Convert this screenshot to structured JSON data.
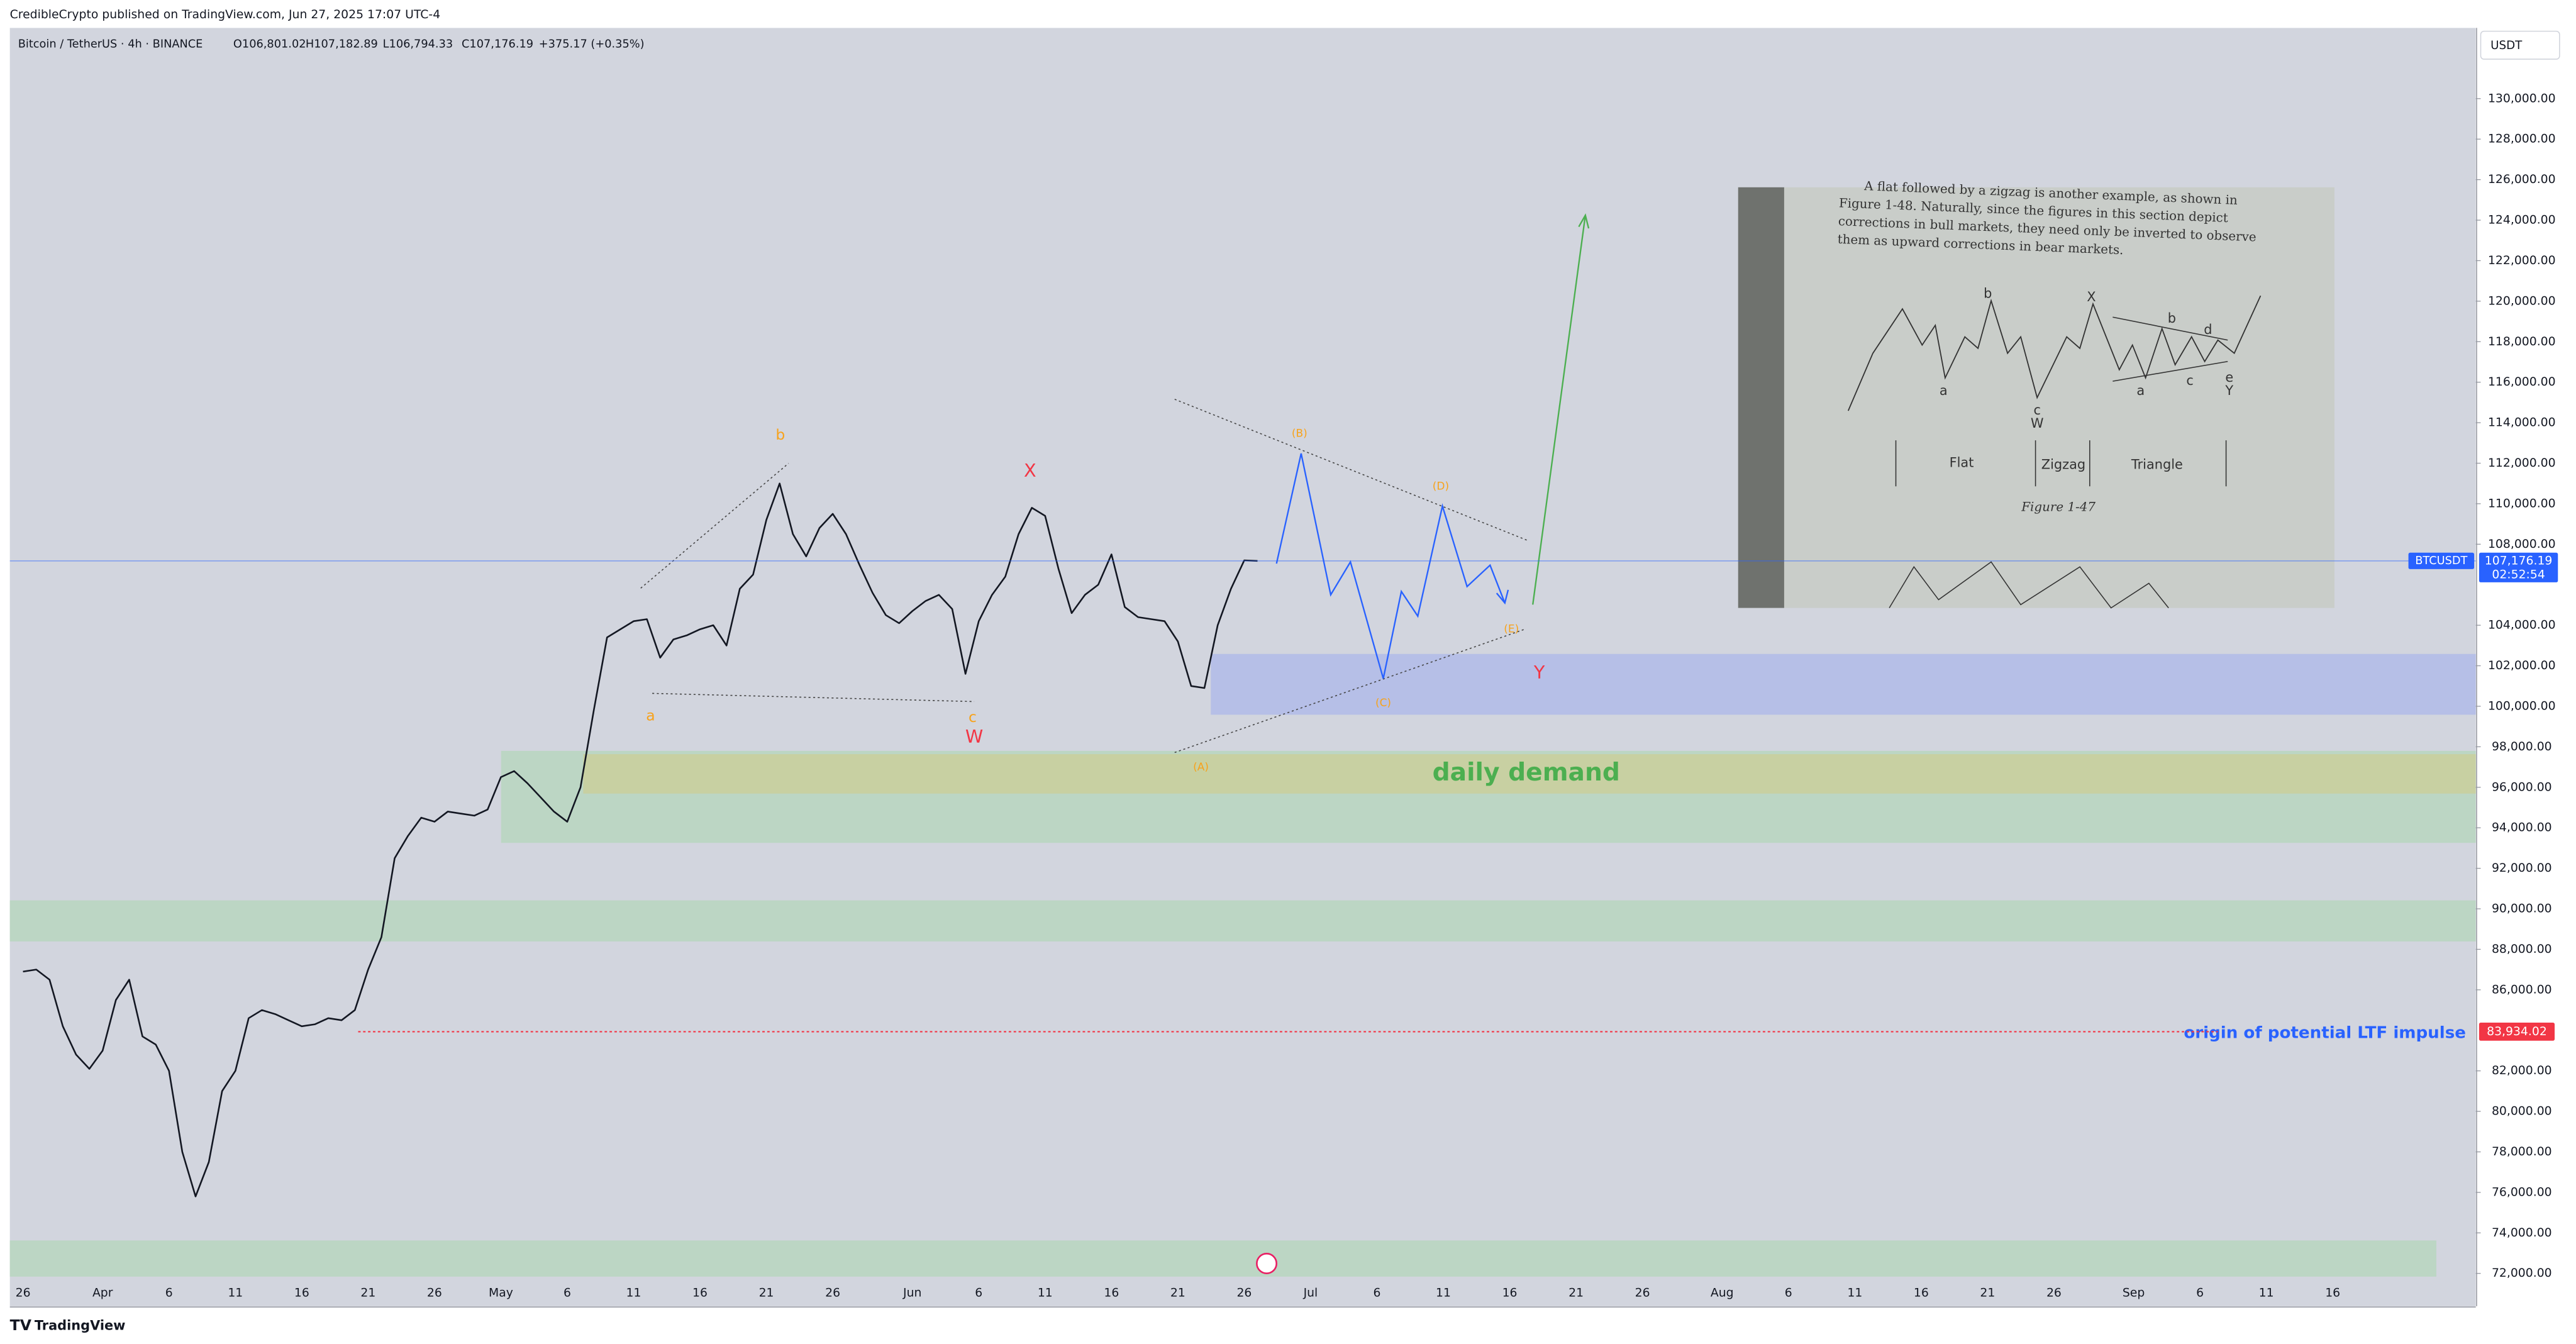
{
  "header": {
    "publisher": "CredibleCrypto published on TradingView.com, Jun 27, 2025 17:07 UTC-4",
    "symbol": "Bitcoin / TetherUS · 4h · BINANCE",
    "ohlc": [
      "O106,801.02",
      "H107,182.89",
      "L106,794.33",
      "C107,176.19",
      "+375.17 (+0.35%)"
    ],
    "currency": "USDT"
  },
  "footer": "TradingView",
  "chart_data": {
    "type": "line",
    "categories": [
      "26",
      null,
      null,
      null,
      null,
      null,
      "Apr",
      null,
      null,
      null,
      null,
      "6",
      null,
      null,
      null,
      null,
      "11",
      null,
      null,
      null,
      null,
      "16",
      null,
      null,
      null,
      null,
      "21",
      null,
      null,
      null,
      null,
      "26",
      null,
      null,
      null,
      null,
      "May",
      null,
      null,
      null,
      null,
      "6",
      null,
      null,
      null,
      null,
      "11",
      null,
      null,
      null,
      null,
      "16",
      null,
      null,
      null,
      null,
      "21",
      null,
      null,
      null,
      null,
      "26",
      null,
      null,
      null,
      null,
      null,
      "Jun",
      null,
      null,
      null,
      null,
      "6",
      null,
      null,
      null,
      null,
      "11",
      null,
      null,
      null,
      null,
      "16",
      null,
      null,
      null,
      null,
      "21",
      null,
      null,
      null,
      null,
      "26",
      null,
      null,
      null,
      null,
      "Jul",
      null,
      null,
      null,
      null,
      "6",
      null,
      null,
      null,
      null,
      "11",
      null,
      null,
      null,
      null,
      "16",
      null,
      null,
      null,
      null,
      "21",
      null,
      null,
      null,
      null,
      "26",
      null,
      null,
      null,
      null,
      null,
      "Aug",
      null,
      null,
      null,
      null,
      "6",
      null,
      null,
      null,
      null,
      "11",
      null,
      null,
      null,
      null,
      "16",
      null,
      null,
      null,
      null,
      "21",
      null,
      null,
      null,
      null,
      "26",
      null,
      null,
      null,
      null,
      null,
      "Sep",
      null,
      null,
      null,
      null,
      "6",
      null,
      null,
      null,
      null,
      "11",
      null,
      null,
      null,
      null,
      "16"
    ],
    "series": [
      {
        "name": "BTCUSDT",
        "color": "#131722",
        "values": [
          86900,
          87000,
          86500,
          84200,
          82800,
          82100,
          83000,
          85500,
          86500,
          83700,
          83300,
          82000,
          78000,
          75800,
          77500,
          81000,
          82000,
          84600,
          85000,
          84800,
          84500,
          84200,
          84300,
          84600,
          84500,
          85000,
          87000,
          88600,
          92500,
          93600,
          94500,
          94300,
          94800,
          94700,
          94600,
          94900,
          96500,
          96800,
          96200,
          95500,
          94800,
          94300,
          96000,
          99800,
          103400,
          103800,
          104200,
          104300,
          102400,
          103300,
          103500,
          103800,
          104000,
          103000,
          105800,
          106500,
          109200,
          111000,
          108500,
          107400,
          108800,
          109500,
          108500,
          107000,
          105600,
          104500,
          104100,
          104700,
          105200,
          105500,
          104800,
          101600,
          104200,
          105500,
          106400,
          108500,
          109800,
          109400,
          106800,
          104600,
          105500,
          106000,
          107500,
          104900,
          104400,
          104300,
          104200,
          103200,
          101000,
          100900,
          104000,
          105800,
          107200,
          107176.19,
          null,
          null,
          null,
          null,
          null,
          null,
          null,
          null,
          null,
          null,
          null,
          null,
          null,
          null,
          null,
          null,
          null,
          null,
          null,
          null,
          null,
          null,
          null,
          null,
          null,
          null,
          null,
          null,
          null,
          null,
          null,
          null,
          null,
          null,
          null,
          null,
          null,
          null,
          null,
          null,
          null,
          null,
          null,
          null,
          null,
          null,
          null,
          null,
          null,
          null,
          null,
          null,
          null,
          null,
          null,
          null,
          null,
          null,
          null,
          null,
          null,
          null,
          null,
          null,
          null,
          null,
          null,
          null,
          null,
          null,
          null,
          null,
          null,
          null,
          null,
          null,
          null,
          null,
          null,
          null,
          null
        ]
      }
    ],
    "ylim": [
      70380,
      133490
    ],
    "yticks": [
      {
        "value": 72000,
        "label": "72,000.00"
      },
      {
        "value": 74000,
        "label": "74,000.00"
      },
      {
        "value": 76000,
        "label": "76,000.00"
      },
      {
        "value": 78000,
        "label": "78,000.00"
      },
      {
        "value": 80000,
        "label": "80,000.00"
      },
      {
        "value": 82000,
        "label": "82,000.00"
      },
      {
        "value": 86000,
        "label": "86,000.00"
      },
      {
        "value": 88000,
        "label": "88,000.00"
      },
      {
        "value": 90000,
        "label": "90,000.00"
      },
      {
        "value": 92000,
        "label": "92,000.00"
      },
      {
        "value": 94000,
        "label": "94,000.00"
      },
      {
        "value": 96000,
        "label": "96,000.00"
      },
      {
        "value": 98000,
        "label": "98,000.00"
      },
      {
        "value": 100000,
        "label": "100,000.00"
      },
      {
        "value": 102000,
        "label": "102,000.00"
      },
      {
        "value": 104000,
        "label": "104,000.00"
      },
      {
        "value": 108000,
        "label": "108,000.00"
      },
      {
        "value": 110000,
        "label": "110,000.00"
      },
      {
        "value": 112000,
        "label": "112,000.00"
      },
      {
        "value": 114000,
        "label": "114,000.00"
      },
      {
        "value": 116000,
        "label": "116,000.00"
      },
      {
        "value": 118000,
        "label": "118,000.00"
      },
      {
        "value": 120000,
        "label": "120,000.00"
      },
      {
        "value": 122000,
        "label": "122,000.00"
      },
      {
        "value": 124000,
        "label": "124,000.00"
      },
      {
        "value": 126000,
        "label": "126,000.00"
      },
      {
        "value": 128000,
        "label": "128,000.00"
      },
      {
        "value": 130000,
        "label": "130,000.00"
      }
    ],
    "grid": false,
    "price_lines": [
      {
        "value": 107176.19,
        "label": "107,176.19",
        "color": "#2962ff",
        "dashed": false
      },
      {
        "value": 83934.02,
        "label": "83,934.02",
        "color": "#f23645",
        "dashed": true
      }
    ],
    "countdown": "02:52:54",
    "annotations": [
      "b",
      "a",
      "c",
      "W",
      "X",
      "(A)",
      "(B)",
      "(C)",
      "(D)",
      "(E)",
      "Y",
      "daily demand",
      "origin of potential LTF impulse"
    ],
    "inset": {
      "lines": [
        "A flat followed by a zigzag is another example, as shown in",
        "Figure 1-48. Naturally, since the figures in this section depict",
        "corrections in bull markets, they need only be inverted to observe",
        "them as upward corrections in bear markets."
      ],
      "labels": [
        "b",
        "X",
        "a",
        "c",
        "W",
        "b",
        "d",
        "a",
        "c",
        "e",
        "Y",
        "Flat",
        "Zigzag",
        "Triangle",
        "Figure 1-47"
      ]
    }
  }
}
